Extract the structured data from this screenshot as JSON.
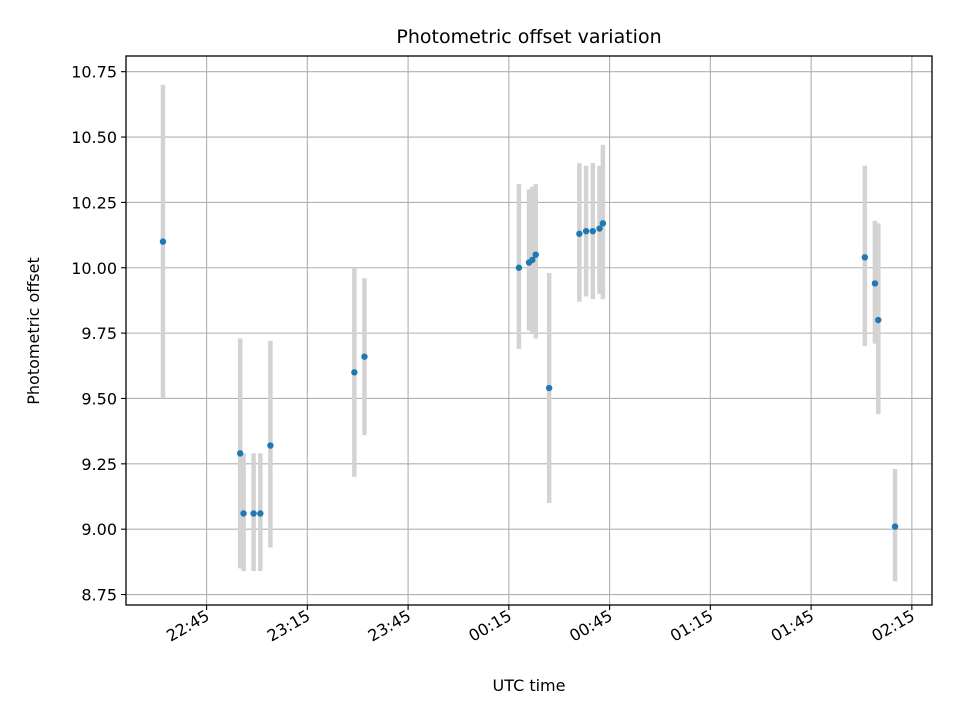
{
  "chart_data": {
    "type": "scatter",
    "title": "Photometric offset variation",
    "xlabel": "UTC time",
    "ylabel": "Photometric offset",
    "x_is_time_of_day": true,
    "xlim": [
      "22:21",
      "02:21"
    ],
    "ylim": [
      8.71,
      10.81
    ],
    "x_ticks": [
      "22:45",
      "23:15",
      "23:45",
      "00:15",
      "00:45",
      "01:15",
      "01:45",
      "02:15"
    ],
    "y_ticks": [
      "8.75",
      "9.00",
      "9.25",
      "9.50",
      "9.75",
      "10.00",
      "10.25",
      "10.50",
      "10.75"
    ],
    "grid": true,
    "point_color": "#1f77b4",
    "errorbar_color": "#d3d3d3",
    "points": [
      {
        "x": "22:32",
        "y": 10.1,
        "low": 9.5,
        "high": 10.7
      },
      {
        "x": "22:55",
        "y": 9.29,
        "low": 8.85,
        "high": 9.73
      },
      {
        "x": "22:56",
        "y": 9.06,
        "low": 8.84,
        "high": 9.29
      },
      {
        "x": "22:59",
        "y": 9.06,
        "low": 8.84,
        "high": 9.29
      },
      {
        "x": "23:01",
        "y": 9.06,
        "low": 8.84,
        "high": 9.29
      },
      {
        "x": "23:04",
        "y": 9.32,
        "low": 8.93,
        "high": 9.72
      },
      {
        "x": "23:29",
        "y": 9.6,
        "low": 9.2,
        "high": 10.0
      },
      {
        "x": "23:32",
        "y": 9.66,
        "low": 9.36,
        "high": 9.96
      },
      {
        "x": "00:18",
        "y": 10.0,
        "low": 9.69,
        "high": 10.32
      },
      {
        "x": "00:21",
        "y": 10.02,
        "low": 9.76,
        "high": 10.3
      },
      {
        "x": "00:22",
        "y": 10.03,
        "low": 9.75,
        "high": 10.31
      },
      {
        "x": "00:23",
        "y": 10.05,
        "low": 9.73,
        "high": 10.32
      },
      {
        "x": "00:27",
        "y": 9.54,
        "low": 9.1,
        "high": 9.98
      },
      {
        "x": "00:36",
        "y": 10.13,
        "low": 9.87,
        "high": 10.4
      },
      {
        "x": "00:38",
        "y": 10.14,
        "low": 9.89,
        "high": 10.39
      },
      {
        "x": "00:40",
        "y": 10.14,
        "low": 9.88,
        "high": 10.4
      },
      {
        "x": "00:42",
        "y": 10.15,
        "low": 9.9,
        "high": 10.39
      },
      {
        "x": "00:43",
        "y": 10.17,
        "low": 9.88,
        "high": 10.47
      },
      {
        "x": "02:01",
        "y": 10.04,
        "low": 9.7,
        "high": 10.39
      },
      {
        "x": "02:04",
        "y": 9.94,
        "low": 9.71,
        "high": 10.18
      },
      {
        "x": "02:05",
        "y": 9.8,
        "low": 9.44,
        "high": 10.17
      },
      {
        "x": "02:10",
        "y": 9.01,
        "low": 8.8,
        "high": 9.23
      }
    ]
  }
}
